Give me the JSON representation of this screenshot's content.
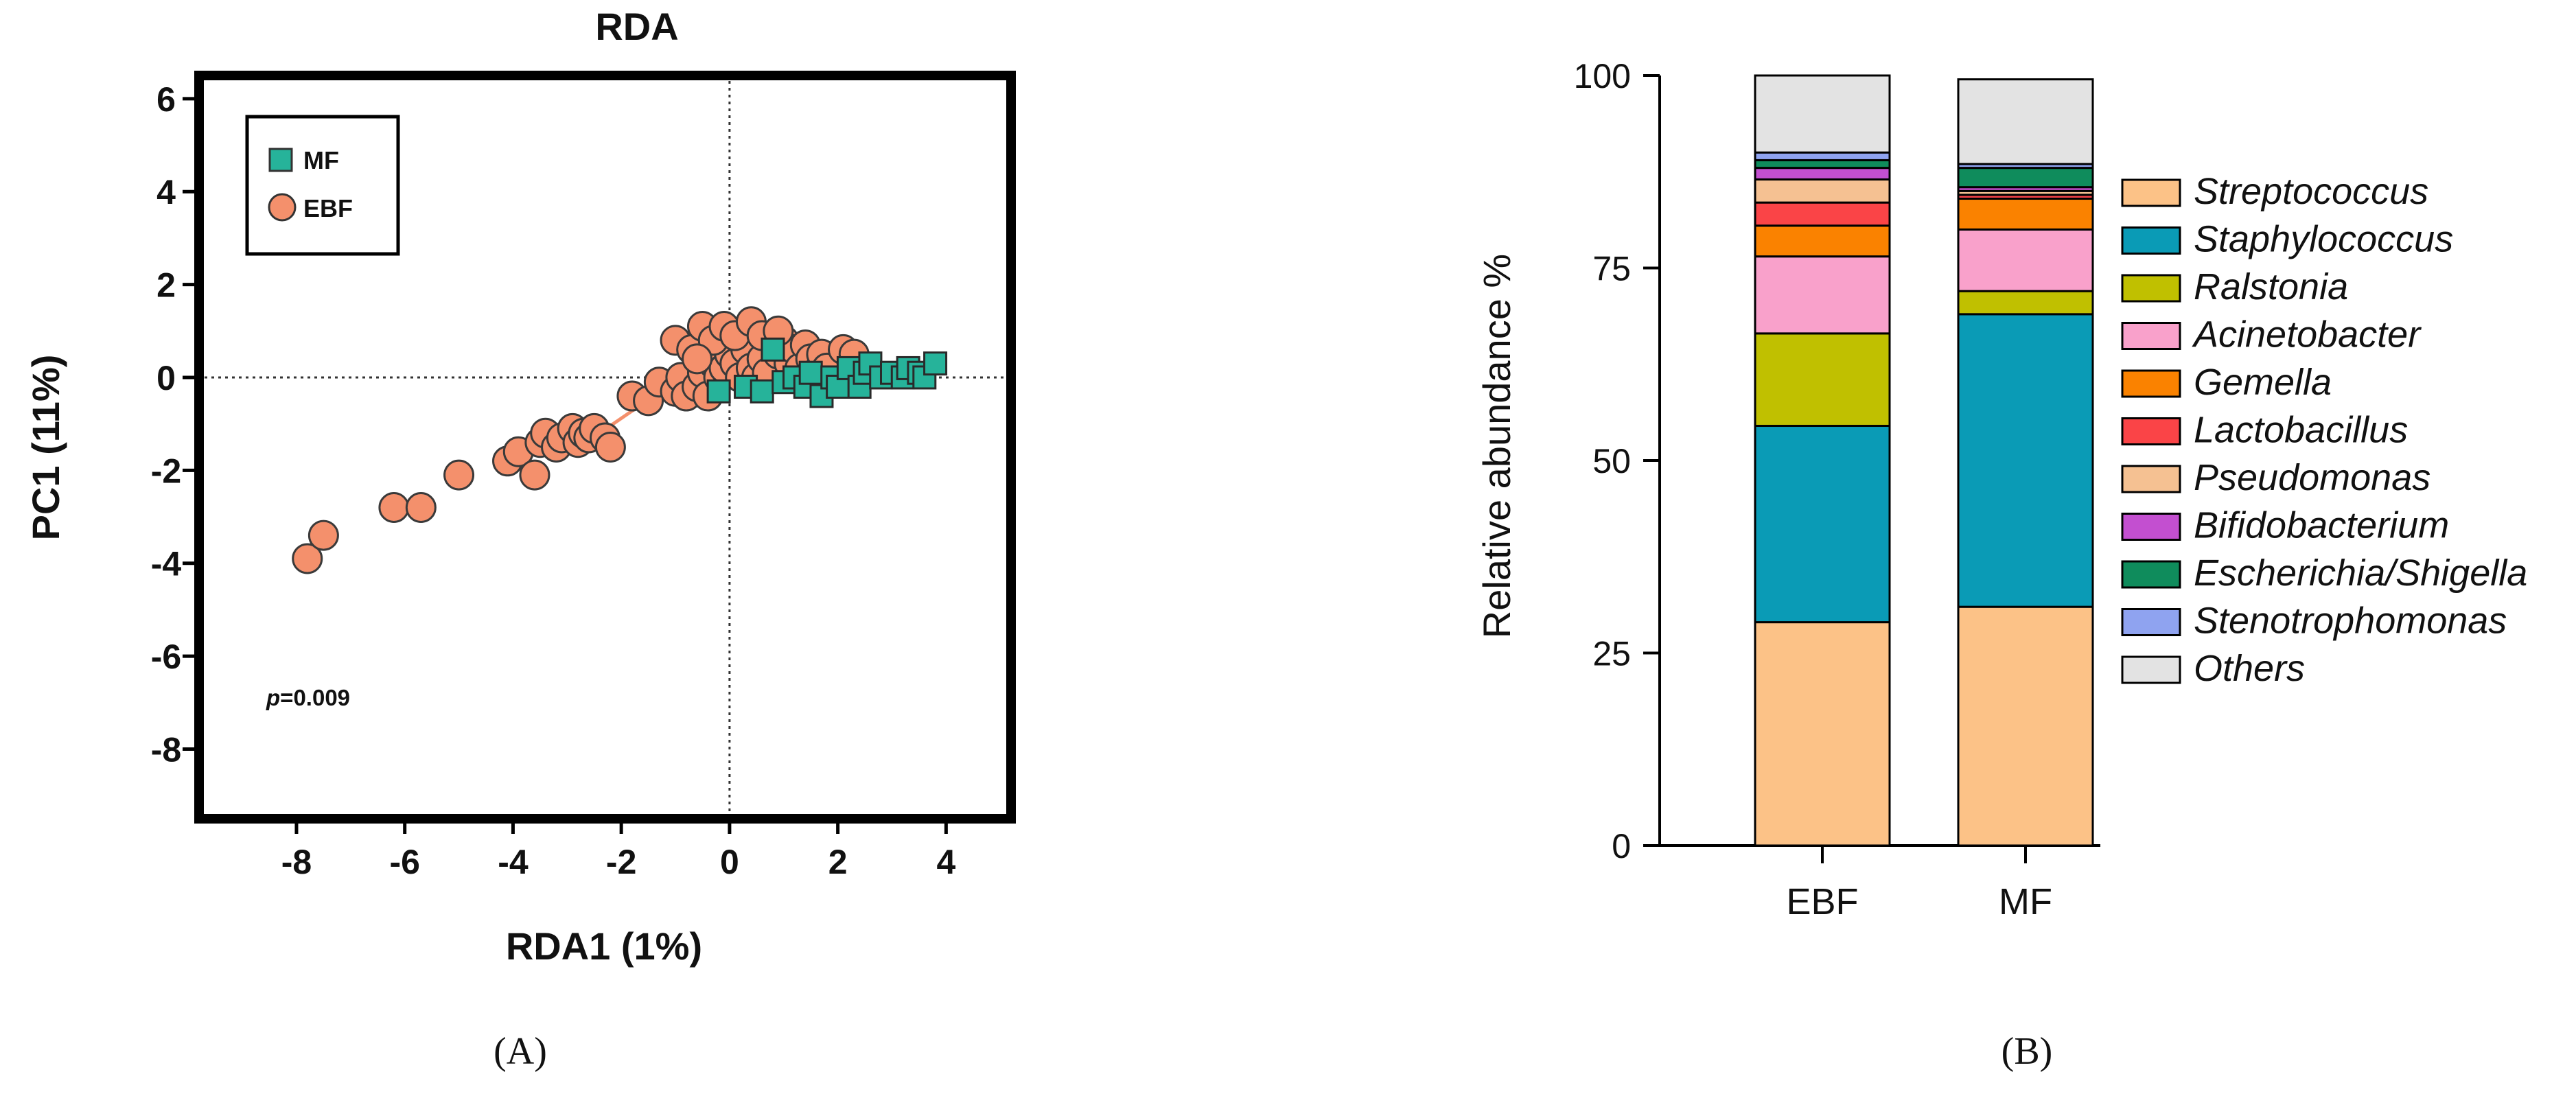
{
  "panels": {
    "a_label": "(A)",
    "b_label": "(B)"
  },
  "chart_data": [
    {
      "type": "scatter",
      "title": "RDA",
      "xlabel": "RDA1 (1%)",
      "ylabel": "PC1 (11%)",
      "xlim": [
        -9.8,
        5.2
      ],
      "ylim": [
        -9.5,
        6.5
      ],
      "xticks": [
        -8,
        -6,
        -4,
        -2,
        0,
        2,
        4
      ],
      "yticks": [
        6,
        4,
        2,
        0,
        -2,
        -4,
        -6,
        -8
      ],
      "reference_lines": {
        "x": 0,
        "y": 0,
        "style": "dotted"
      },
      "legend_position": "top-left",
      "annotation": {
        "p_label": "p",
        "p_value": "=0.009"
      },
      "series": [
        {
          "name": "MF",
          "marker": "square",
          "color": "#26b39a",
          "points": [
            [
              -0.2,
              -0.3
            ],
            [
              0.3,
              -0.2
            ],
            [
              0.6,
              -0.3
            ],
            [
              0.8,
              0.6
            ],
            [
              1.0,
              -0.1
            ],
            [
              1.2,
              0.0
            ],
            [
              1.4,
              -0.2
            ],
            [
              1.5,
              0.1
            ],
            [
              1.7,
              -0.4
            ],
            [
              1.9,
              0.0
            ],
            [
              2.0,
              -0.2
            ],
            [
              2.2,
              0.2
            ],
            [
              2.4,
              -0.2
            ],
            [
              2.5,
              0.1
            ],
            [
              2.6,
              0.3
            ],
            [
              2.8,
              0.0
            ],
            [
              3.0,
              0.1
            ],
            [
              3.2,
              0.0
            ],
            [
              3.3,
              0.2
            ],
            [
              3.5,
              0.1
            ],
            [
              3.6,
              0.0
            ],
            [
              3.8,
              0.3
            ]
          ]
        },
        {
          "name": "EBF",
          "marker": "circle",
          "color": "#f4906c",
          "points": [
            [
              -7.8,
              -3.9
            ],
            [
              -7.5,
              -3.4
            ],
            [
              -6.2,
              -2.8
            ],
            [
              -5.7,
              -2.8
            ],
            [
              -5.0,
              -2.1
            ],
            [
              -4.1,
              -1.8
            ],
            [
              -3.9,
              -1.6
            ],
            [
              -3.6,
              -2.1
            ],
            [
              -3.5,
              -1.4
            ],
            [
              -3.4,
              -1.2
            ],
            [
              -3.2,
              -1.5
            ],
            [
              -3.1,
              -1.3
            ],
            [
              -2.9,
              -1.1
            ],
            [
              -2.8,
              -1.4
            ],
            [
              -2.7,
              -1.2
            ],
            [
              -2.6,
              -1.3
            ],
            [
              -2.5,
              -1.1
            ],
            [
              -2.3,
              -1.3
            ],
            [
              -2.2,
              -1.5
            ],
            [
              -1.8,
              -0.4
            ],
            [
              -1.5,
              -0.5
            ],
            [
              -1.3,
              -0.1
            ],
            [
              -1.0,
              -0.3
            ],
            [
              -0.9,
              0.0
            ],
            [
              -0.8,
              -0.4
            ],
            [
              -0.6,
              -0.2
            ],
            [
              -0.5,
              0.1
            ],
            [
              -0.4,
              -0.4
            ],
            [
              -0.3,
              0.3
            ],
            [
              -0.2,
              0.0
            ],
            [
              -0.1,
              0.2
            ],
            [
              0.0,
              0.5
            ],
            [
              0.1,
              0.3
            ],
            [
              0.2,
              0.0
            ],
            [
              0.3,
              0.6
            ],
            [
              0.4,
              0.2
            ],
            [
              0.5,
              0.0
            ],
            [
              0.6,
              0.4
            ],
            [
              0.7,
              0.1
            ],
            [
              0.8,
              0.9
            ],
            [
              0.9,
              0.5
            ],
            [
              1.0,
              0.8
            ],
            [
              1.1,
              0.3
            ],
            [
              1.2,
              0.6
            ],
            [
              1.3,
              0.2
            ],
            [
              1.4,
              0.7
            ],
            [
              1.5,
              0.4
            ],
            [
              1.6,
              0.1
            ],
            [
              1.7,
              0.5
            ],
            [
              1.8,
              0.2
            ],
            [
              2.1,
              0.6
            ],
            [
              2.3,
              0.5
            ],
            [
              -1.0,
              0.8
            ],
            [
              -0.7,
              0.6
            ],
            [
              -0.5,
              1.1
            ],
            [
              -0.3,
              0.8
            ],
            [
              -0.1,
              1.1
            ],
            [
              0.1,
              0.9
            ],
            [
              0.4,
              1.2
            ],
            [
              0.6,
              0.9
            ],
            [
              -0.6,
              0.4
            ],
            [
              0.9,
              1.0
            ]
          ]
        }
      ]
    },
    {
      "type": "stacked_bar",
      "ylabel": "Relative abundance %",
      "ylim": [
        0,
        100
      ],
      "yticks": [
        0,
        25,
        50,
        75,
        100
      ],
      "categories": [
        "EBF",
        "MF"
      ],
      "legend_position": "right",
      "series": [
        {
          "name": "Streptococcus",
          "color": "#fcc287",
          "values": [
            29,
            31
          ]
        },
        {
          "name": "Staphylococcus",
          "color": "#0a9bb6",
          "values": [
            25.5,
            38
          ]
        },
        {
          "name": "Ralstonia",
          "color": "#c0c000",
          "values": [
            12,
            3
          ]
        },
        {
          "name": "Acinetobacter",
          "color": "#f9a1cb",
          "values": [
            10,
            8
          ]
        },
        {
          "name": "Gemella",
          "color": "#fa8200",
          "values": [
            4,
            4
          ]
        },
        {
          "name": "Lactobacillus",
          "color": "#fa4447",
          "values": [
            3,
            0.5
          ]
        },
        {
          "name": "Pseudomonas",
          "color": "#f5c192",
          "values": [
            3,
            0.5
          ]
        },
        {
          "name": "Bifidobacterium",
          "color": "#c34fd0",
          "values": [
            1.5,
            0.5
          ]
        },
        {
          "name": "Escherichia/Shigella",
          "color": "#0f8c5c",
          "values": [
            1,
            2.5
          ]
        },
        {
          "name": "Stenotrophomonas",
          "color": "#8fa3f0",
          "values": [
            1,
            0.5
          ]
        },
        {
          "name": "Others",
          "color": "#e3e3e3",
          "values": [
            10,
            11
          ]
        }
      ]
    }
  ]
}
